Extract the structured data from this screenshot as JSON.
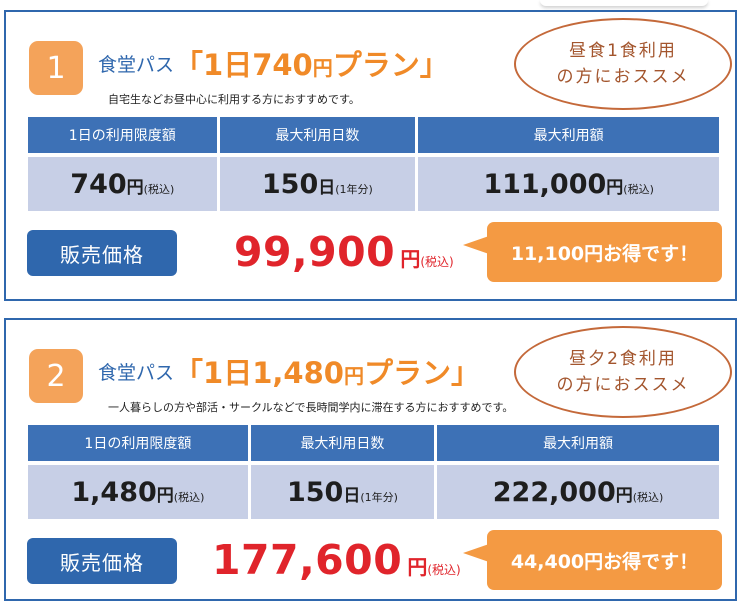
{
  "plans": [
    {
      "number": "1",
      "pass_label": "食堂パス",
      "title_pre": "「1日",
      "title_amount": "740",
      "title_yen": "円",
      "title_post": "プラン」",
      "subtitle": "自宅生などお昼中心に利用する方におすすめです。",
      "bubble_line1": "昼食1食利用",
      "bubble_line2": "の方におススメ",
      "headers": [
        "1日の利用限度額",
        "最大利用日数",
        "最大利用額"
      ],
      "cells": [
        {
          "value": "740",
          "unit": "円",
          "note": "(税込)"
        },
        {
          "value": "150",
          "unit": "日",
          "note": "(1年分)"
        },
        {
          "value": "111,000",
          "unit": "円",
          "note": "(税込)"
        }
      ],
      "price_label": "販売価格",
      "price": "99,900",
      "price_unit": "円",
      "price_note": "(税込)",
      "deal": "11,100円お得です！"
    },
    {
      "number": "2",
      "pass_label": "食堂パス",
      "title_pre": "「1日",
      "title_amount": "1,480",
      "title_yen": "円",
      "title_post": "プラン」",
      "subtitle": "一人暮らしの方や部活・サークルなどで長時間学内に滞在する方におすすめです。",
      "bubble_line1": "昼夕2食利用",
      "bubble_line2": "の方におススメ",
      "headers": [
        "1日の利用限度額",
        "最大利用日数",
        "最大利用額"
      ],
      "cells": [
        {
          "value": "1,480",
          "unit": "円",
          "note": "(税込)"
        },
        {
          "value": "150",
          "unit": "日",
          "note": "(1年分)"
        },
        {
          "value": "222,000",
          "unit": "円",
          "note": "(税込)"
        }
      ],
      "price_label": "販売価格",
      "price": "177,600",
      "price_unit": "円",
      "price_note": "(税込)",
      "deal": "44,400円お得です！"
    }
  ]
}
